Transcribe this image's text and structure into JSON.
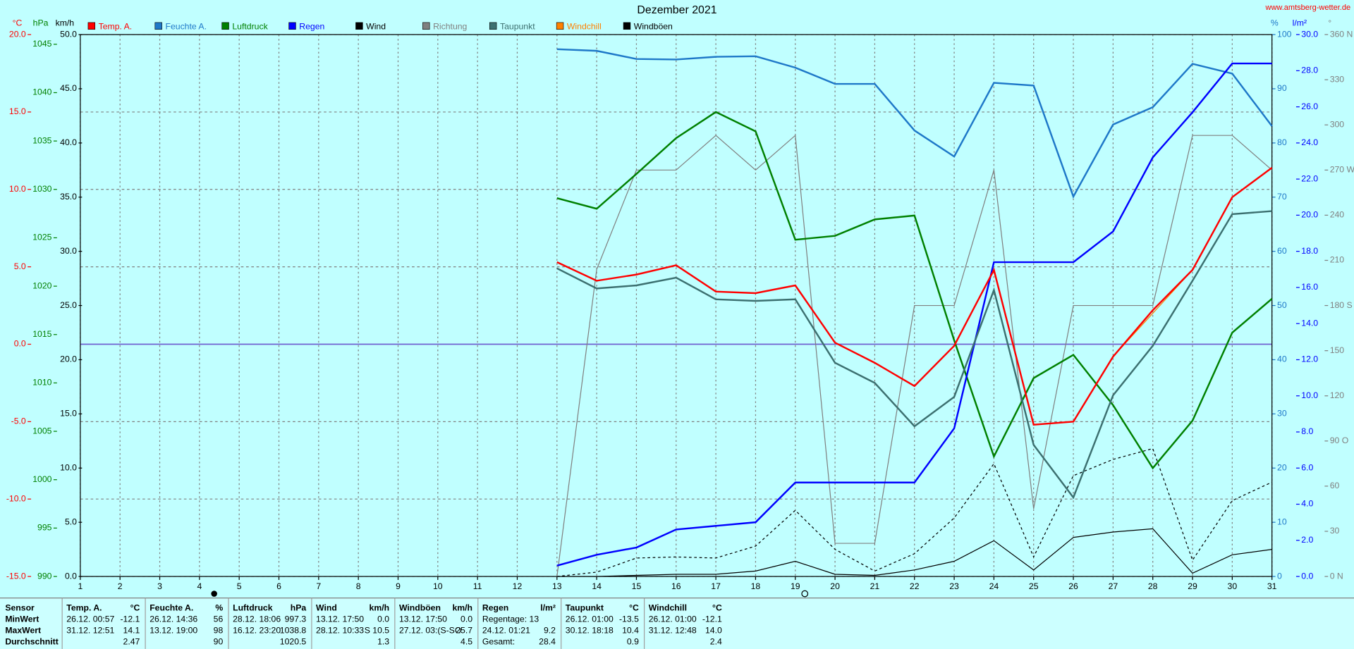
{
  "site": "www.amtsberg-wetter.de",
  "chart_data": {
    "type": "line",
    "title": "Dezember 2021",
    "x": [
      13,
      14,
      15,
      16,
      17,
      18,
      19,
      20,
      21,
      22,
      23,
      24,
      25,
      26,
      27,
      28,
      29,
      30,
      31
    ],
    "xlim": [
      1,
      31
    ],
    "xticks": [
      1,
      2,
      3,
      4,
      5,
      6,
      7,
      8,
      9,
      10,
      11,
      12,
      13,
      14,
      15,
      16,
      17,
      18,
      19,
      20,
      21,
      22,
      23,
      24,
      25,
      26,
      27,
      28,
      29,
      30,
      31
    ],
    "grid": true,
    "zero_line_color": "#7060d0",
    "background": "#c0ffff",
    "axes": {
      "temp": {
        "label": "°C",
        "color": "#ff0000",
        "lim": [
          -15,
          20
        ],
        "ticks": [
          {
            "value": 20,
            "label": "20.0"
          },
          {
            "value": 15,
            "label": "15.0"
          },
          {
            "value": 10,
            "label": "10.0"
          },
          {
            "value": 5,
            "label": "5.0"
          },
          {
            "value": 0,
            "label": "0.0"
          },
          {
            "value": -5,
            "label": "-5.0"
          },
          {
            "value": -10,
            "label": "-10.0"
          },
          {
            "value": -15,
            "label": "-15.0"
          }
        ]
      },
      "hpa": {
        "label": "hPa",
        "color": "#008000",
        "lim": [
          990,
          1046
        ],
        "ticks": [
          990,
          995,
          1000,
          1005,
          1010,
          1015,
          1020,
          1025,
          1030,
          1035,
          1040,
          1045
        ]
      },
      "kmh": {
        "label": "km/h",
        "color": "#000000",
        "lim": [
          0,
          50
        ],
        "ticks": [
          {
            "value": 0,
            "label": "0.0"
          },
          {
            "value": 5,
            "label": "5.0"
          },
          {
            "value": 10,
            "label": "10.0"
          },
          {
            "value": 15,
            "label": "15.0"
          },
          {
            "value": 20,
            "label": "20.0"
          },
          {
            "value": 25,
            "label": "25.0"
          },
          {
            "value": 30,
            "label": "30.0"
          },
          {
            "value": 35,
            "label": "35.0"
          },
          {
            "value": 40,
            "label": "40.0"
          },
          {
            "value": 45,
            "label": "45.0"
          },
          {
            "value": 50,
            "label": "50.0"
          }
        ]
      },
      "pct": {
        "label": "%",
        "color": "#1e78c8",
        "lim": [
          0,
          100
        ],
        "ticks": [
          0,
          10,
          20,
          30,
          40,
          50,
          60,
          70,
          80,
          90,
          100
        ]
      },
      "rain": {
        "label": "l/m²",
        "color": "#0000ff",
        "lim": [
          0,
          30
        ],
        "ticks": [
          {
            "value": 0,
            "label": "0.0"
          },
          {
            "value": 2,
            "label": "2.0"
          },
          {
            "value": 4,
            "label": "4.0"
          },
          {
            "value": 6,
            "label": "6.0"
          },
          {
            "value": 8,
            "label": "8.0"
          },
          {
            "value": 10,
            "label": "10.0"
          },
          {
            "value": 12,
            "label": "12.0"
          },
          {
            "value": 14,
            "label": "14.0"
          },
          {
            "value": 16,
            "label": "16.0"
          },
          {
            "value": 18,
            "label": "18.0"
          },
          {
            "value": 20,
            "label": "20.0"
          },
          {
            "value": 22,
            "label": "22.0"
          },
          {
            "value": 24,
            "label": "24.0"
          },
          {
            "value": 26,
            "label": "26.0"
          },
          {
            "value": 28,
            "label": "28.0"
          },
          {
            "value": 30,
            "label": "30.0"
          }
        ]
      },
      "deg": {
        "label": "°",
        "color": "#808080",
        "lim": [
          0,
          360
        ],
        "ticks": [
          {
            "value": 0,
            "label": "0  N"
          },
          30,
          60,
          {
            "value": 90,
            "label": "90  O"
          },
          120,
          150,
          {
            "value": 180,
            "label": "180  S"
          },
          210,
          240,
          {
            "value": 270,
            "label": "270 W"
          },
          300,
          330,
          {
            "value": 360,
            "label": "360  N"
          }
        ]
      }
    },
    "series": [
      {
        "name": "Temp. A.",
        "color": "#ff0000",
        "axis": "temp",
        "width": 2,
        "values": [
          5.3,
          4.1,
          4.5,
          5.1,
          3.4,
          3.3,
          3.8,
          0.1,
          -1.2,
          -2.7,
          -0.1,
          4.8,
          -5.2,
          -5.0,
          -0.8,
          2.2,
          4.8,
          9.5,
          11.4
        ]
      },
      {
        "name": "Feuchte A.",
        "color": "#1e78c8",
        "axis": "pct",
        "width": 2,
        "values": [
          97.3,
          97.0,
          95.5,
          95.4,
          95.9,
          96.0,
          93.9,
          90.9,
          90.9,
          82.3,
          77.5,
          91.1,
          90.6,
          70.1,
          83.4,
          86.6,
          94.6,
          92.8,
          83.1
        ]
      },
      {
        "name": "Luftdruck",
        "color": "#008000",
        "axis": "hpa",
        "width": 2,
        "values": [
          1029.1,
          1028.0,
          1031.6,
          1035.3,
          1038.0,
          1036.0,
          1024.8,
          1025.2,
          1026.9,
          1027.3,
          1014.4,
          1002.4,
          1010.5,
          1012.9,
          1007.7,
          1001.2,
          1006.1,
          1015.2,
          1018.7
        ]
      },
      {
        "name": "Regen",
        "color": "#0000ff",
        "axis": "rain",
        "width": 2,
        "values": [
          0.6,
          1.2,
          1.6,
          2.6,
          2.8,
          3.0,
          5.2,
          5.2,
          5.2,
          5.2,
          8.2,
          17.4,
          17.4,
          17.4,
          19.1,
          23.2,
          25.7,
          28.4,
          28.4
        ]
      },
      {
        "name": "Wind",
        "color": "#000000",
        "axis": "kmh",
        "width": 1,
        "values": [
          0,
          0,
          0.1,
          0.2,
          0.2,
          0.5,
          1.4,
          0.2,
          0.1,
          0.6,
          1.4,
          3.3,
          0.6,
          3.6,
          4.1,
          4.4,
          0.3,
          2.0,
          2.5
        ]
      },
      {
        "name": "Richtung",
        "color": "#808080",
        "axis": "deg",
        "width": 1,
        "values": [
          0,
          204,
          270,
          270,
          293,
          270,
          293,
          22,
          22,
          180,
          180,
          270,
          45,
          180,
          180,
          180,
          293,
          293,
          270
        ]
      },
      {
        "name": "Taupunkt",
        "color": "#3c7070",
        "axis": "temp",
        "width": 2,
        "values": [
          4.9,
          3.6,
          3.8,
          4.3,
          2.9,
          2.8,
          2.9,
          -1.2,
          -2.5,
          -5.3,
          -3.4,
          3.5,
          -6.5,
          -9.9,
          -3.3,
          -0.1,
          4.1,
          8.4,
          8.6
        ]
      },
      {
        "name": "Windchill",
        "color": "#ff8000",
        "axis": "temp",
        "width": 1,
        "values": [
          5.3,
          4.1,
          4.5,
          5.1,
          3.4,
          3.3,
          3.8,
          0.1,
          -1.2,
          -2.7,
          -0.1,
          4.8,
          -5.2,
          -5.0,
          -0.8,
          2.0,
          4.8,
          9.5,
          11.4
        ]
      },
      {
        "name": "Windböen",
        "color": "#000000",
        "axis": "kmh",
        "width": 1,
        "style": "dashed",
        "values": [
          0,
          0.4,
          1.7,
          1.8,
          1.7,
          2.8,
          6.1,
          2.5,
          0.5,
          2.1,
          5.4,
          10.4,
          1.8,
          9.3,
          10.8,
          11.8,
          1.5,
          7.0,
          8.7
        ]
      }
    ]
  },
  "table": {
    "row_labels": [
      "Sensor",
      "MinWert",
      "MaxWert",
      "Durchschnitt"
    ],
    "columns": [
      {
        "name": "Temp. A.",
        "unit": "°C",
        "min": {
          "time": "26.12.  00:57",
          "value": "-12.1"
        },
        "max": {
          "time": "31.12.  12:51",
          "value": "14.1"
        },
        "avg": {
          "value": "2.47"
        }
      },
      {
        "name": "Feuchte A.",
        "unit": "%",
        "min": {
          "time": "26.12.  14:36",
          "value": "56"
        },
        "max": {
          "time": "13.12.  19:00",
          "value": "98"
        },
        "avg": {
          "value": "90"
        }
      },
      {
        "name": "Luftdruck",
        "unit": "hPa",
        "min": {
          "time": "28.12.  18:06",
          "value": "997.3"
        },
        "max": {
          "time": "16.12.  23:20",
          "value": "1038.8"
        },
        "avg": {
          "value": "1020.5"
        }
      },
      {
        "name": "Wind",
        "unit": "km/h",
        "min": {
          "time": "13.12.  17:50",
          "value": "0.0"
        },
        "max": {
          "time": "28.12.  10:33",
          "value": "S 10.5"
        },
        "avg": {
          "value": "1.3"
        }
      },
      {
        "name": "Windböen",
        "unit": "km/h",
        "min": {
          "time": "13.12.  17:50",
          "value": "0.0"
        },
        "max": {
          "time": "27.12.  03:(S-SO",
          "value": "25.7"
        },
        "avg": {
          "value": "4.5"
        }
      },
      {
        "name": "Regen",
        "unit": "l/m²",
        "min": {
          "time": "Regentage: 13"
        },
        "max": {
          "time": "24.12.  01:21",
          "value": "9.2"
        },
        "avg": {
          "time": "Gesamt:",
          "value": "28.4"
        }
      },
      {
        "name": "Taupunkt",
        "unit": "°C",
        "min": {
          "time": "26.12.  01:00",
          "value": "-13.5"
        },
        "max": {
          "time": "30.12.  18:18",
          "value": "10.4"
        },
        "avg": {
          "value": "0.9"
        }
      },
      {
        "name": "Windchill",
        "unit": "°C",
        "min": {
          "time": "26.12.  01:00",
          "value": "-12.1"
        },
        "max": {
          "time": "31.12.  12:48",
          "value": "14.0"
        },
        "avg": {
          "value": "2.4"
        }
      }
    ]
  }
}
